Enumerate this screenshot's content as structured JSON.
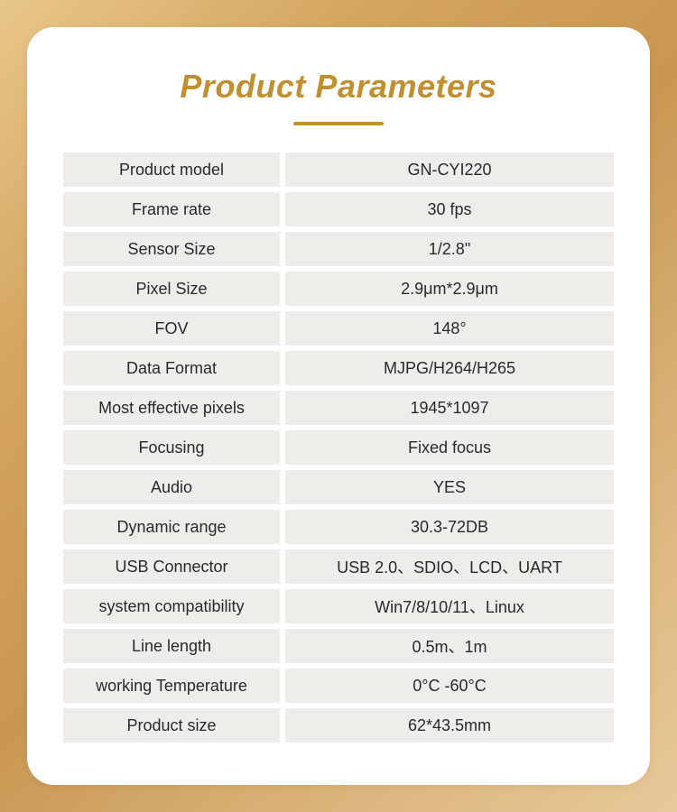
{
  "title": "Product Parameters",
  "colors": {
    "brand": "#c09030",
    "cell_bg": "#efedea",
    "text": "#2a2a2a",
    "card_bg": "#ffffff"
  },
  "rows": [
    {
      "label": "Product model",
      "value": "GN-CYI220"
    },
    {
      "label": "Frame rate",
      "value": "30 fps"
    },
    {
      "label": "Sensor  Size",
      "value": "1/2.8\""
    },
    {
      "label": "Pixel Size",
      "value": "2.9μm*2.9μm"
    },
    {
      "label": "FOV",
      "value": "148°"
    },
    {
      "label": "Data Format",
      "value": "MJPG/H264/H265"
    },
    {
      "label": "Most effective pixels",
      "value": "1945*1097"
    },
    {
      "label": "Focusing",
      "value": "Fixed focus"
    },
    {
      "label": "Audio",
      "value": "YES"
    },
    {
      "label": "Dynamic range",
      "value": "30.3-72DB"
    },
    {
      "label": "USB Connector",
      "value": "USB 2.0、SDIO、LCD、UART"
    },
    {
      "label": "system compatibility",
      "value": "Win7/8/10/11、Linux"
    },
    {
      "label": "Line length",
      "value": "0.5m、1m"
    },
    {
      "label": "working Temperature",
      "value": "0°C -60°C"
    },
    {
      "label": "Product size",
      "value": "62*43.5mm"
    }
  ]
}
